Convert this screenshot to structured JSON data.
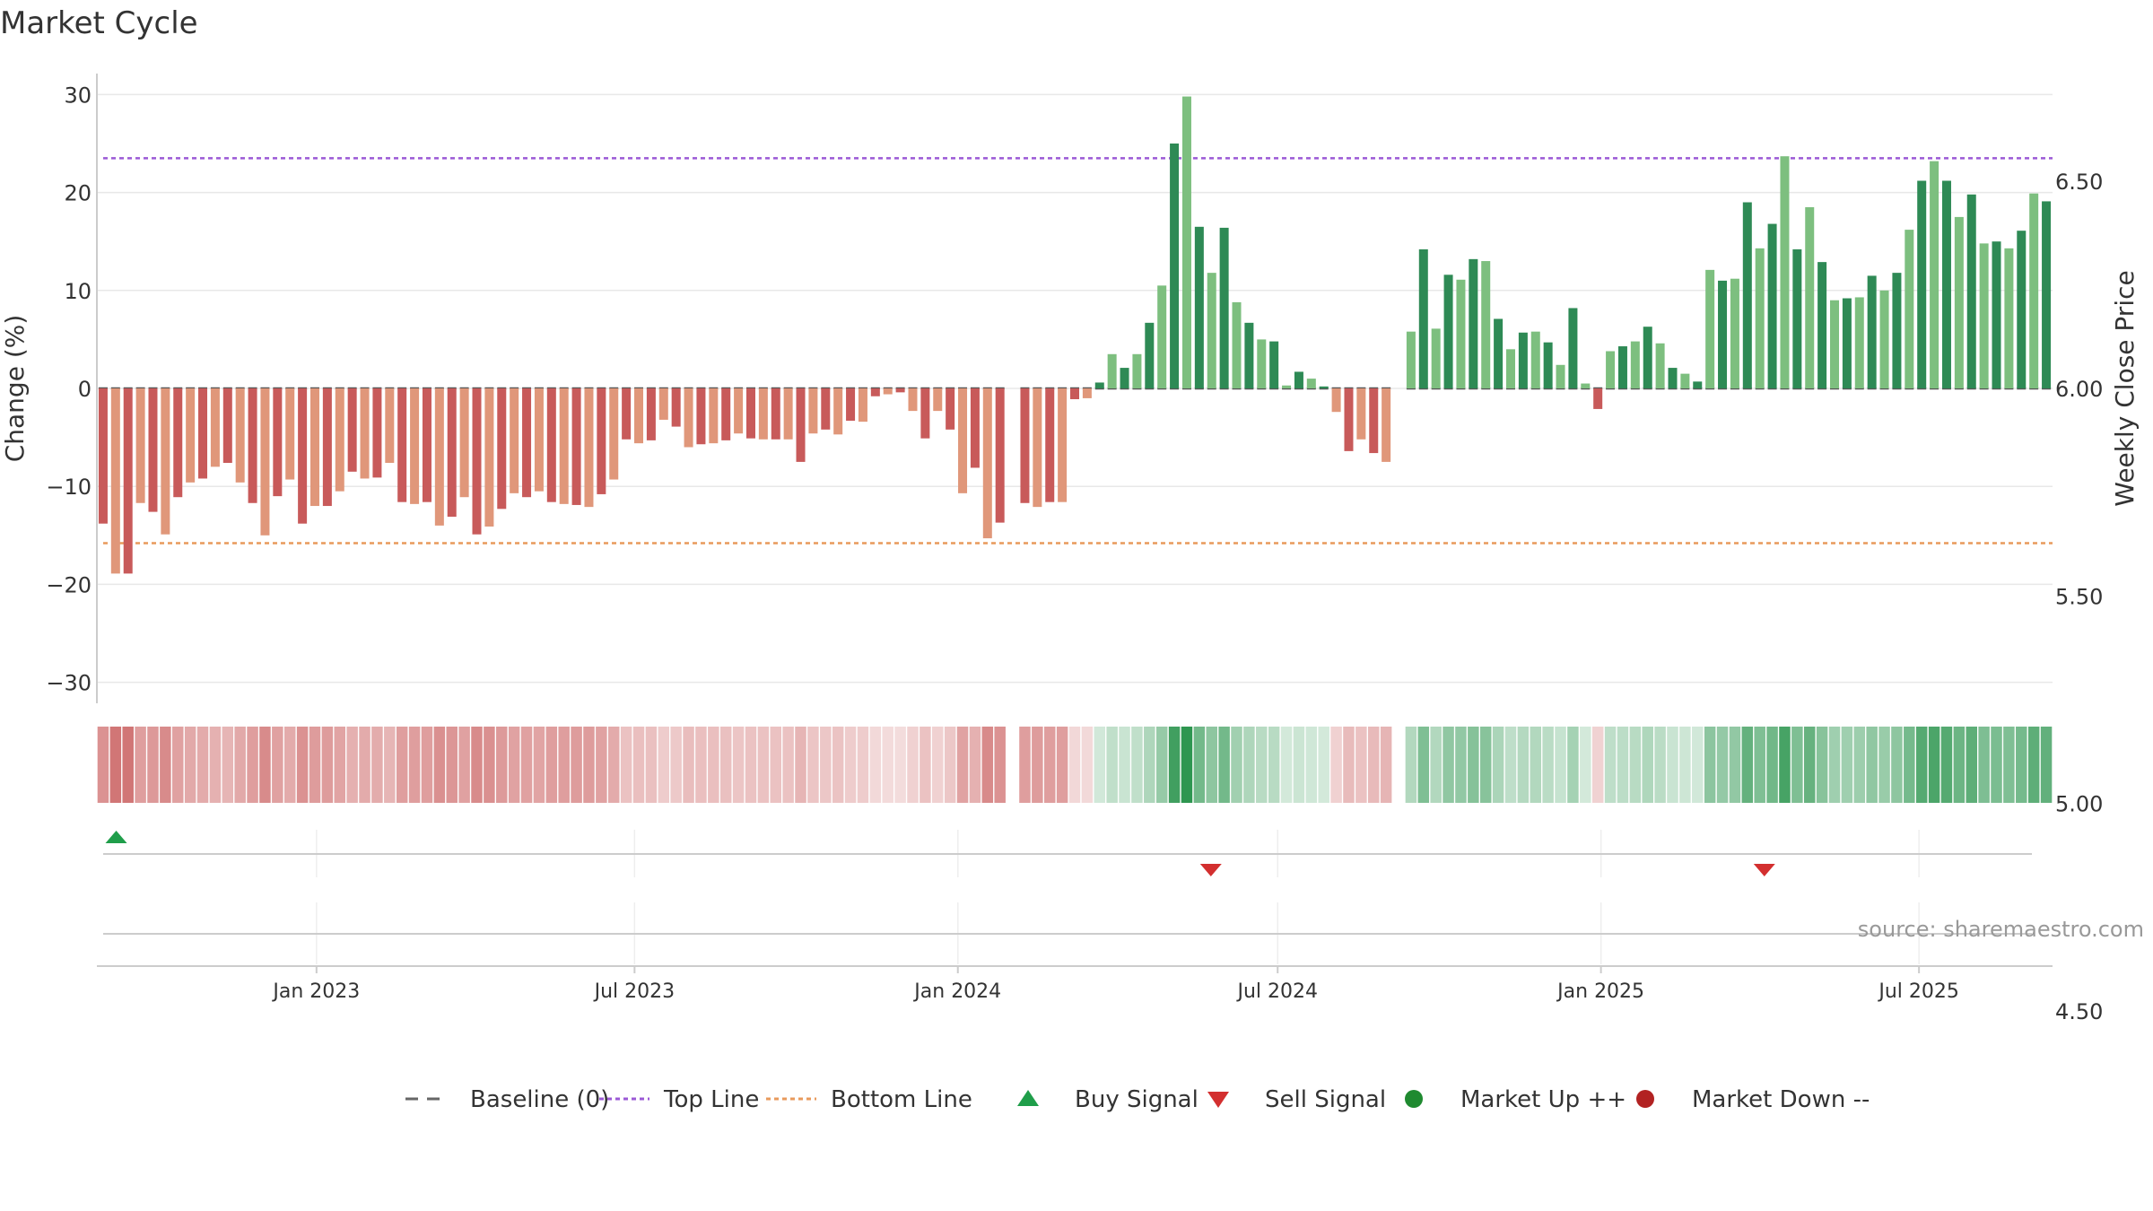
{
  "chart_data": {
    "type": "bar",
    "title": "Market Cycle",
    "ylabel": "Change (%)",
    "y2label": "Weekly Close Price",
    "ylim": [
      -32,
      32
    ],
    "y2lim": [
      4.4,
      7.6
    ],
    "yticks": [
      -30,
      -20,
      -10,
      0,
      10,
      20,
      30
    ],
    "ytick_labels": [
      "−30",
      "−20",
      "−10",
      "0",
      "10",
      "20",
      "30"
    ],
    "y2ticks": [
      4.5,
      5.0,
      5.5,
      6.0,
      6.5,
      7.0
    ],
    "y2tick_labels": [
      "4.50",
      "5.00",
      "5.50",
      "6.00",
      "6.50",
      "7.00"
    ],
    "x_start": "2022-08-29",
    "x_end": "2025-09-15",
    "xticks": [
      "2023-01-01",
      "2023-07-01",
      "2024-01-01",
      "2024-07-01",
      "2025-01-01",
      "2025-07-01"
    ],
    "xtick_labels": [
      "Jan 2023",
      "Jul 2023",
      "Jan 2024",
      "Jul 2024",
      "Jan 2025",
      "Jul 2025"
    ],
    "top_line": 23.5,
    "bottom_line": -15.8,
    "baseline": 0,
    "grid": true,
    "legend_position": "bottom",
    "week_start": "2022-09-02",
    "values": [
      -13.8,
      -18.9,
      -18.9,
      -11.7,
      -12.6,
      -14.9,
      -11.1,
      -9.6,
      -9.2,
      -8.0,
      -7.6,
      -9.6,
      -11.7,
      -15.0,
      -11.0,
      -9.3,
      -13.8,
      -12.0,
      -12.0,
      -10.5,
      -8.5,
      -9.2,
      -9.1,
      -7.6,
      -11.6,
      -11.8,
      -11.6,
      -14.0,
      -13.1,
      -11.1,
      -14.9,
      -14.1,
      -12.3,
      -10.7,
      -11.1,
      -10.5,
      -11.6,
      -11.8,
      -11.9,
      -12.1,
      -10.8,
      -9.3,
      -5.2,
      -5.6,
      -5.3,
      -3.2,
      -3.9,
      -6.0,
      -5.7,
      -5.6,
      -5.3,
      -4.6,
      -5.1,
      -5.2,
      -5.2,
      -5.2,
      -7.5,
      -4.6,
      -4.2,
      -4.7,
      -3.3,
      -3.4,
      -0.8,
      -0.6,
      -0.4,
      -2.3,
      -5.1,
      -2.3,
      -4.2,
      -10.7,
      -8.1,
      -15.3,
      -13.7,
      null,
      -11.7,
      -12.1,
      -11.6,
      -11.6,
      -1.1,
      -1.0,
      0.6,
      3.5,
      2.1,
      3.5,
      6.7,
      10.5,
      25.0,
      29.8,
      16.5,
      11.8,
      16.4,
      8.8,
      6.7,
      5.0,
      4.8,
      0.3,
      1.7,
      1.0,
      0.2,
      -2.4,
      -6.4,
      -5.2,
      -6.6,
      -7.5,
      null,
      5.8,
      14.2,
      6.1,
      11.6,
      11.1,
      13.2,
      13.0,
      7.1,
      4.0,
      5.7,
      5.8,
      4.7,
      2.4,
      8.2,
      0.5,
      -2.1,
      3.8,
      4.3,
      4.8,
      6.3,
      4.6,
      2.1,
      1.5,
      0.7,
      12.1,
      11.0,
      11.2,
      19.0,
      14.3,
      16.8,
      23.7,
      14.2,
      18.5,
      12.9,
      9.0,
      9.2,
      9.3,
      11.5,
      10.0,
      11.8,
      16.2,
      21.2,
      23.2,
      21.2,
      17.5,
      19.8,
      14.8,
      15.0,
      14.3,
      16.1,
      19.9,
      19.1
    ],
    "signals": [
      {
        "type": "buy",
        "date": "2022-09-09"
      },
      {
        "type": "sell",
        "date": "2024-05-24"
      },
      {
        "type": "sell",
        "date": "2025-04-04"
      }
    ],
    "colors": {
      "strong_down": "#c85a5a",
      "weak_down": "#e0977a",
      "strong_up": "#2e8a55",
      "weak_up": "#7dbf7f",
      "top_line": "#9b59d6",
      "bottom_line": "#e89a5c",
      "buy": "#1f9e4a",
      "sell": "#d32f2f",
      "market_up": "#1f8a30",
      "market_down": "#b22222",
      "grid": "#e8e8e8",
      "axis": "#cccccc"
    },
    "legend": [
      {
        "label": "Baseline (0)",
        "marker": "dash",
        "color": "#666666"
      },
      {
        "label": "Top Line",
        "marker": "dotted",
        "color": "#9b59d6"
      },
      {
        "label": "Bottom Line",
        "marker": "dotted",
        "color": "#e89a5c"
      },
      {
        "label": "Buy Signal",
        "marker": "triangle-up",
        "color": "#1f9e4a"
      },
      {
        "label": "Sell Signal",
        "marker": "triangle-down",
        "color": "#d32f2f"
      },
      {
        "label": "Market Up ++",
        "marker": "circle",
        "color": "#1f8a30"
      },
      {
        "label": "Market Down --",
        "marker": "circle",
        "color": "#b22222"
      }
    ],
    "source": "source: sharemaestro.com"
  }
}
